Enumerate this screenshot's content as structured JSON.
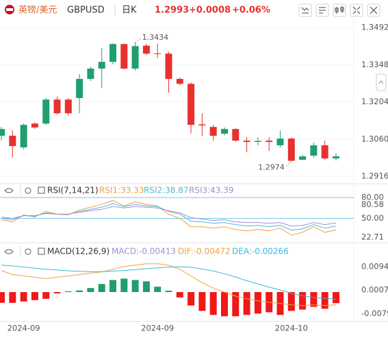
{
  "header": {
    "title": "英镑/美元",
    "symbol": "GBPUSD",
    "period": "日K",
    "price": "1.2993",
    "change": "+0.0008",
    "change_pct": "+0.06%"
  },
  "chart_data": [
    {
      "type": "candlestick",
      "up_color": "#1f9e6e",
      "down_color": "#e8302e",
      "categories": [
        null,
        null,
        "2024-09",
        null,
        null,
        null,
        null,
        null,
        null,
        null,
        null,
        null,
        null,
        null,
        "2024-09",
        null,
        null,
        null,
        null,
        null,
        null,
        null,
        null,
        null,
        null,
        null,
        "2024-10",
        null,
        null,
        null,
        null
      ],
      "open": [
        1.3073,
        1.3073,
        1.3028,
        1.312,
        1.312,
        1.3213,
        1.3213,
        1.3219,
        1.3293,
        1.3333,
        1.3359,
        1.3428,
        1.3333,
        1.3422,
        1.3392,
        1.3391,
        1.3293,
        1.3274,
        1.3117,
        1.3107,
        1.3081,
        1.3099,
        1.3054,
        1.3049,
        1.3054,
        1.3036,
        1.3062,
        1.298,
        1.2996,
        1.3036,
        1.2985
      ],
      "high": [
        1.3107,
        1.3094,
        1.312,
        1.3125,
        1.3219,
        1.3225,
        1.3219,
        1.3312,
        1.334,
        1.3412,
        1.3432,
        1.343,
        1.3434,
        1.343,
        1.343,
        1.3399,
        1.3298,
        1.328,
        1.316,
        1.3115,
        1.3105,
        1.3102,
        1.3067,
        1.3067,
        1.3067,
        1.3094,
        1.3067,
        1.2998,
        1.3046,
        1.3054,
        1.3005
      ],
      "low": [
        1.3054,
        1.2988,
        1.302,
        1.3099,
        1.3115,
        1.3155,
        1.315,
        1.316,
        1.3285,
        1.3258,
        1.335,
        1.333,
        1.3325,
        1.3386,
        1.3373,
        1.324,
        1.3268,
        1.3081,
        1.3073,
        1.3054,
        1.3075,
        1.305,
        1.3009,
        1.3036,
        1.3014,
        1.3028,
        1.2974,
        1.2978,
        1.2988,
        1.298,
        1.2977
      ],
      "close": [
        1.3099,
        1.3033,
        1.3115,
        1.3105,
        1.3213,
        1.316,
        1.316,
        1.3293,
        1.3333,
        1.3359,
        1.3428,
        1.3333,
        1.342,
        1.3391,
        1.339,
        1.3293,
        1.3274,
        1.3115,
        1.3113,
        1.3073,
        1.3099,
        1.3054,
        1.3049,
        1.3053,
        1.3049,
        1.3062,
        1.2976,
        1.2993,
        1.3036,
        1.2985,
        1.2993
      ],
      "annotations": [
        {
          "value": 1.3434,
          "kind": "high"
        },
        {
          "value": 1.2974,
          "kind": "low"
        }
      ],
      "ylim": [
        1.2903,
        1.3519
      ],
      "yticks": [
        1.2916,
        {
          "value": 1.306,
          "label": "1.3060"
        },
        1.3204,
        1.3348,
        1.3492
      ]
    },
    {
      "type": "rsi",
      "title": "RSI(7,14,21)",
      "series": [
        {
          "name": "RSI1",
          "value_label": "RSI1:33.33",
          "color": "#f0a040",
          "values": [
            48,
            45,
            55,
            52,
            60,
            56,
            55,
            62,
            66,
            70,
            76,
            68,
            74,
            70,
            68,
            56,
            50,
            38,
            38,
            36,
            38,
            34,
            32,
            34,
            32,
            36,
            26,
            30,
            38,
            30,
            33.33
          ]
        },
        {
          "name": "RSI2",
          "value_label": "RSI2:38.87",
          "color": "#4fb8dc",
          "values": [
            50,
            48,
            54,
            53,
            58,
            56,
            56,
            60,
            63,
            66,
            71,
            67,
            70,
            68,
            67,
            60,
            56,
            46,
            45,
            43,
            44,
            41,
            39,
            40,
            38,
            40,
            33,
            35,
            41,
            36,
            38.87
          ]
        },
        {
          "name": "RSI3",
          "value_label": "RSI3:43.39",
          "color": "#a78bd8",
          "values": [
            52,
            50,
            54,
            54,
            57,
            56,
            56,
            59,
            61,
            63,
            67,
            65,
            67,
            66,
            65,
            61,
            58,
            51,
            49,
            47,
            48,
            45,
            44,
            44,
            43,
            44,
            39,
            40,
            44,
            41,
            43.39
          ]
        }
      ],
      "ylim": [
        17,
        85
      ],
      "yticks": [
        {
          "value": 80,
          "label": "80.00",
          "line": true
        },
        80.58,
        {
          "value": 50,
          "label": "50.00",
          "line": true
        },
        22.71
      ]
    },
    {
      "type": "macd",
      "title": "MACD(12,26,9)",
      "up_color": "#1f9e6e",
      "down_color": "#f01818",
      "histogram": {
        "name": "MACD",
        "value_label": "MACD:-0.00413",
        "color": "#a78bd8",
        "values": [
          -0.004,
          -0.004,
          -0.0035,
          -0.003,
          -0.0025,
          -0.0005,
          0.0003,
          0.0006,
          0.0015,
          0.003,
          0.0045,
          0.005,
          0.0045,
          0.004,
          0.002,
          0.0005,
          -0.002,
          -0.005,
          -0.007,
          -0.0085,
          -0.009,
          -0.009,
          -0.0085,
          -0.008,
          -0.0075,
          -0.0085,
          -0.007,
          -0.0065,
          -0.0055,
          -0.0062,
          -0.00413
        ]
      },
      "series": [
        {
          "name": "DIF",
          "value_label": "DIF:-0.00472",
          "color": "#f0a040",
          "values": [
            0.008,
            0.0065,
            0.006,
            0.0055,
            0.005,
            0.0055,
            0.006,
            0.0065,
            0.007,
            0.0075,
            0.0085,
            0.0095,
            0.01,
            0.0105,
            0.0105,
            0.01,
            0.0085,
            0.006,
            0.0035,
            0.0015,
            0,
            -0.0015,
            -0.0025,
            -0.0032,
            -0.0038,
            -0.0042,
            -0.0048,
            -0.005,
            -0.0048,
            -0.005,
            -0.00472
          ]
        },
        {
          "name": "DEA",
          "value_label": "DEA:-0.00266",
          "color": "#3ab8d8",
          "values": [
            0.01,
            0.0097,
            0.0093,
            0.0089,
            0.0085,
            0.0082,
            0.0079,
            0.0077,
            0.0076,
            0.0076,
            0.0078,
            0.008,
            0.0083,
            0.0087,
            0.009,
            0.0093,
            0.0094,
            0.0092,
            0.0086,
            0.0078,
            0.0068,
            0.0056,
            0.0042,
            0.003,
            0.0018,
            0.0008,
            -0.0005,
            -0.0014,
            -0.002,
            -0.0023,
            -0.00266
          ]
        }
      ],
      "ylim": [
        -0.0107,
        0.013
      ],
      "yticks": [
        0.00949,
        0.00075,
        -0.00798
      ]
    }
  ]
}
